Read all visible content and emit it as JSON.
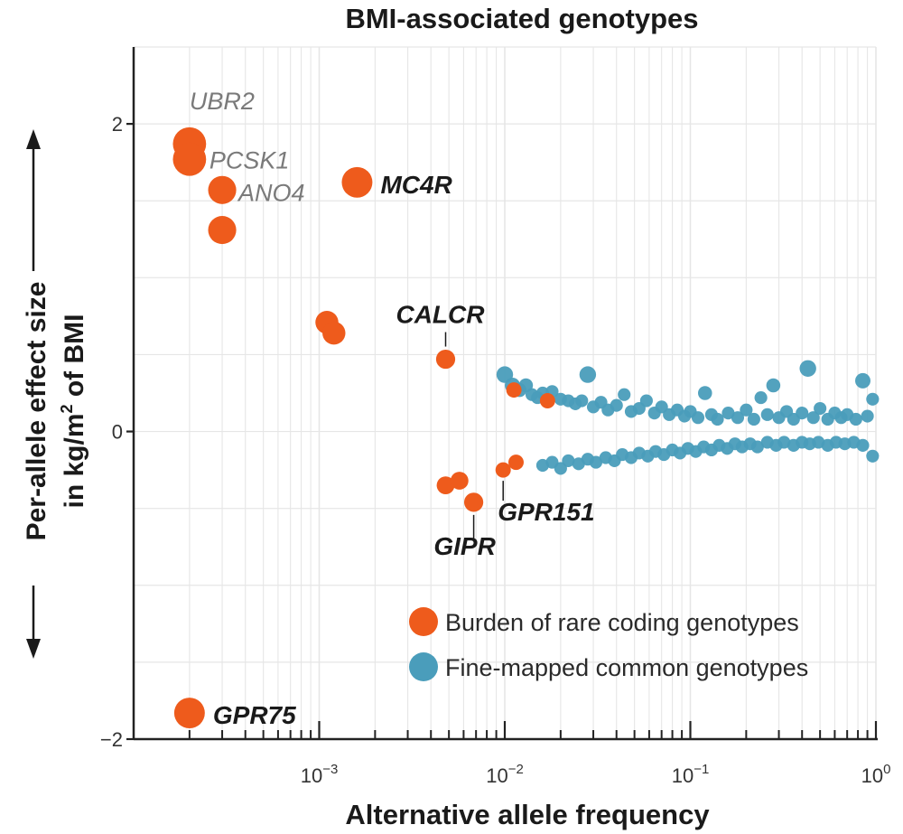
{
  "chart_data": {
    "type": "scatter",
    "title": "BMI-associated genotypes",
    "xlabel": "Alternative allele frequency",
    "ylabel_line1": "Per-allele effect size",
    "ylabel_line2_prefix": "in kg/m",
    "ylabel_line2_sup": "2",
    "ylabel_line2_suffix": " of BMI",
    "x_scale": "log",
    "xlim": [
      0.0001,
      1.0
    ],
    "ylim": [
      -2.0,
      2.5
    ],
    "grid": true,
    "legend_position": "bottom-right",
    "x_ticks": [
      {
        "value": 0.001,
        "base": "10",
        "exp": "−3"
      },
      {
        "value": 0.01,
        "base": "10",
        "exp": "−2"
      },
      {
        "value": 0.1,
        "base": "10",
        "exp": "−1"
      },
      {
        "value": 1.0,
        "base": "10",
        "exp": "0"
      }
    ],
    "y_ticks": [
      {
        "value": 2,
        "label": "2"
      },
      {
        "value": 0,
        "label": "0"
      },
      {
        "value": -2,
        "label": "−2"
      }
    ],
    "colors": {
      "rare": "#ee5b1c",
      "common": "#4a9dbb",
      "grid": "#e6e6e6",
      "axis": "#222222"
    },
    "series": [
      {
        "name": "Burden of rare coding genotypes",
        "color": "#ee5b1c",
        "points": [
          {
            "x": 0.0002,
            "y": 1.87,
            "size": 2.6,
            "label": "UBR2",
            "label_style": "gray"
          },
          {
            "x": 0.0002,
            "y": 1.77,
            "size": 2.6,
            "label": "PCSK1",
            "label_style": "gray"
          },
          {
            "x": 0.0003,
            "y": 1.57,
            "size": 2.2,
            "label": "ANO4",
            "label_style": "gray"
          },
          {
            "x": 0.0003,
            "y": 1.31,
            "size": 2.2,
            "label": "",
            "label_style": ""
          },
          {
            "x": 0.0016,
            "y": 1.62,
            "size": 2.4,
            "label": "MC4R",
            "label_style": "bold"
          },
          {
            "x": 0.0011,
            "y": 0.71,
            "size": 1.8,
            "label": "",
            "label_style": ""
          },
          {
            "x": 0.0012,
            "y": 0.64,
            "size": 1.8,
            "label": "",
            "label_style": ""
          },
          {
            "x": 0.0048,
            "y": 0.47,
            "size": 1.5,
            "label": "CALCR",
            "label_style": "bold"
          },
          {
            "x": 0.0048,
            "y": -0.35,
            "size": 1.4,
            "label": "",
            "label_style": ""
          },
          {
            "x": 0.0057,
            "y": -0.32,
            "size": 1.4,
            "label": "",
            "label_style": ""
          },
          {
            "x": 0.0068,
            "y": -0.46,
            "size": 1.5,
            "label": "GIPR",
            "label_style": "bold"
          },
          {
            "x": 0.0098,
            "y": -0.25,
            "size": 1.2,
            "label": "GPR151",
            "label_style": "bold"
          },
          {
            "x": 0.0115,
            "y": -0.2,
            "size": 1.2,
            "label": "",
            "label_style": ""
          },
          {
            "x": 0.0112,
            "y": 0.27,
            "size": 1.2,
            "label": "",
            "label_style": ""
          },
          {
            "x": 0.017,
            "y": 0.2,
            "size": 1.2,
            "label": "",
            "label_style": ""
          },
          {
            "x": 0.0002,
            "y": -1.83,
            "size": 2.4,
            "label": "GPR75",
            "label_style": "bold"
          }
        ]
      },
      {
        "name": "Fine-mapped common genotypes",
        "color": "#4a9dbb",
        "points": [
          {
            "x": 0.01,
            "y": 0.37,
            "size": 1.3
          },
          {
            "x": 0.011,
            "y": 0.3,
            "size": 1.2
          },
          {
            "x": 0.012,
            "y": 0.27,
            "size": 1.1
          },
          {
            "x": 0.013,
            "y": 0.3,
            "size": 1.1
          },
          {
            "x": 0.014,
            "y": 0.24,
            "size": 1.0
          },
          {
            "x": 0.015,
            "y": 0.22,
            "size": 1.0
          },
          {
            "x": 0.016,
            "y": 0.25,
            "size": 1.0
          },
          {
            "x": 0.018,
            "y": 0.26,
            "size": 1.0
          },
          {
            "x": 0.02,
            "y": 0.21,
            "size": 1.0
          },
          {
            "x": 0.022,
            "y": 0.2,
            "size": 1.0
          },
          {
            "x": 0.024,
            "y": 0.18,
            "size": 1.0
          },
          {
            "x": 0.026,
            "y": 0.2,
            "size": 1.0
          },
          {
            "x": 0.028,
            "y": 0.37,
            "size": 1.3
          },
          {
            "x": 0.03,
            "y": 0.16,
            "size": 1.0
          },
          {
            "x": 0.033,
            "y": 0.19,
            "size": 1.0
          },
          {
            "x": 0.036,
            "y": 0.14,
            "size": 1.0
          },
          {
            "x": 0.04,
            "y": 0.17,
            "size": 1.0
          },
          {
            "x": 0.044,
            "y": 0.24,
            "size": 1.0
          },
          {
            "x": 0.048,
            "y": 0.13,
            "size": 1.0
          },
          {
            "x": 0.053,
            "y": 0.15,
            "size": 1.0
          },
          {
            "x": 0.058,
            "y": 0.2,
            "size": 1.0
          },
          {
            "x": 0.064,
            "y": 0.12,
            "size": 1.0
          },
          {
            "x": 0.07,
            "y": 0.16,
            "size": 1.0
          },
          {
            "x": 0.077,
            "y": 0.11,
            "size": 1.0
          },
          {
            "x": 0.085,
            "y": 0.14,
            "size": 1.0
          },
          {
            "x": 0.093,
            "y": 0.1,
            "size": 1.0
          },
          {
            "x": 0.1,
            "y": 0.13,
            "size": 1.0
          },
          {
            "x": 0.11,
            "y": 0.09,
            "size": 1.0
          },
          {
            "x": 0.12,
            "y": 0.25,
            "size": 1.1
          },
          {
            "x": 0.13,
            "y": 0.11,
            "size": 1.0
          },
          {
            "x": 0.14,
            "y": 0.08,
            "size": 1.0
          },
          {
            "x": 0.16,
            "y": 0.12,
            "size": 1.0
          },
          {
            "x": 0.18,
            "y": 0.09,
            "size": 1.0
          },
          {
            "x": 0.2,
            "y": 0.14,
            "size": 1.0
          },
          {
            "x": 0.22,
            "y": 0.08,
            "size": 1.0
          },
          {
            "x": 0.24,
            "y": 0.22,
            "size": 1.0
          },
          {
            "x": 0.26,
            "y": 0.11,
            "size": 1.0
          },
          {
            "x": 0.28,
            "y": 0.3,
            "size": 1.1
          },
          {
            "x": 0.3,
            "y": 0.09,
            "size": 1.0
          },
          {
            "x": 0.33,
            "y": 0.13,
            "size": 1.0
          },
          {
            "x": 0.36,
            "y": 0.08,
            "size": 1.0
          },
          {
            "x": 0.4,
            "y": 0.12,
            "size": 1.0
          },
          {
            "x": 0.43,
            "y": 0.41,
            "size": 1.3
          },
          {
            "x": 0.46,
            "y": 0.09,
            "size": 1.0
          },
          {
            "x": 0.5,
            "y": 0.15,
            "size": 1.0
          },
          {
            "x": 0.55,
            "y": 0.08,
            "size": 1.0
          },
          {
            "x": 0.6,
            "y": 0.12,
            "size": 1.0
          },
          {
            "x": 0.65,
            "y": 0.09,
            "size": 1.0
          },
          {
            "x": 0.7,
            "y": 0.11,
            "size": 1.0
          },
          {
            "x": 0.78,
            "y": 0.08,
            "size": 1.0
          },
          {
            "x": 0.85,
            "y": 0.33,
            "size": 1.2
          },
          {
            "x": 0.9,
            "y": 0.1,
            "size": 1.0
          },
          {
            "x": 0.96,
            "y": 0.21,
            "size": 1.0
          },
          {
            "x": 0.016,
            "y": -0.22,
            "size": 1.0
          },
          {
            "x": 0.018,
            "y": -0.2,
            "size": 1.0
          },
          {
            "x": 0.02,
            "y": -0.24,
            "size": 1.0
          },
          {
            "x": 0.022,
            "y": -0.19,
            "size": 1.0
          },
          {
            "x": 0.025,
            "y": -0.21,
            "size": 1.0
          },
          {
            "x": 0.028,
            "y": -0.18,
            "size": 1.0
          },
          {
            "x": 0.031,
            "y": -0.2,
            "size": 1.0
          },
          {
            "x": 0.035,
            "y": -0.17,
            "size": 1.0
          },
          {
            "x": 0.039,
            "y": -0.19,
            "size": 1.0
          },
          {
            "x": 0.043,
            "y": -0.15,
            "size": 1.0
          },
          {
            "x": 0.048,
            "y": -0.17,
            "size": 1.0
          },
          {
            "x": 0.053,
            "y": -0.14,
            "size": 1.0
          },
          {
            "x": 0.059,
            "y": -0.16,
            "size": 1.0
          },
          {
            "x": 0.065,
            "y": -0.13,
            "size": 1.0
          },
          {
            "x": 0.072,
            "y": -0.15,
            "size": 1.0
          },
          {
            "x": 0.08,
            "y": -0.12,
            "size": 1.0
          },
          {
            "x": 0.088,
            "y": -0.14,
            "size": 1.0
          },
          {
            "x": 0.097,
            "y": -0.11,
            "size": 1.0
          },
          {
            "x": 0.107,
            "y": -0.13,
            "size": 1.0
          },
          {
            "x": 0.118,
            "y": -0.1,
            "size": 1.0
          },
          {
            "x": 0.13,
            "y": -0.12,
            "size": 1.0
          },
          {
            "x": 0.143,
            "y": -0.09,
            "size": 1.0
          },
          {
            "x": 0.158,
            "y": -0.11,
            "size": 1.0
          },
          {
            "x": 0.174,
            "y": -0.08,
            "size": 1.0
          },
          {
            "x": 0.19,
            "y": -0.1,
            "size": 1.0
          },
          {
            "x": 0.21,
            "y": -0.08,
            "size": 1.0
          },
          {
            "x": 0.23,
            "y": -0.1,
            "size": 1.0
          },
          {
            "x": 0.26,
            "y": -0.07,
            "size": 1.0
          },
          {
            "x": 0.29,
            "y": -0.09,
            "size": 1.0
          },
          {
            "x": 0.32,
            "y": -0.07,
            "size": 1.0
          },
          {
            "x": 0.36,
            "y": -0.09,
            "size": 1.0
          },
          {
            "x": 0.4,
            "y": -0.07,
            "size": 1.0
          },
          {
            "x": 0.44,
            "y": -0.08,
            "size": 1.0
          },
          {
            "x": 0.49,
            "y": -0.07,
            "size": 1.0
          },
          {
            "x": 0.55,
            "y": -0.09,
            "size": 1.0
          },
          {
            "x": 0.61,
            "y": -0.07,
            "size": 1.0
          },
          {
            "x": 0.68,
            "y": -0.08,
            "size": 1.0
          },
          {
            "x": 0.76,
            "y": -0.07,
            "size": 1.0
          },
          {
            "x": 0.85,
            "y": -0.09,
            "size": 1.0
          },
          {
            "x": 0.96,
            "y": -0.16,
            "size": 1.0
          }
        ]
      }
    ]
  }
}
